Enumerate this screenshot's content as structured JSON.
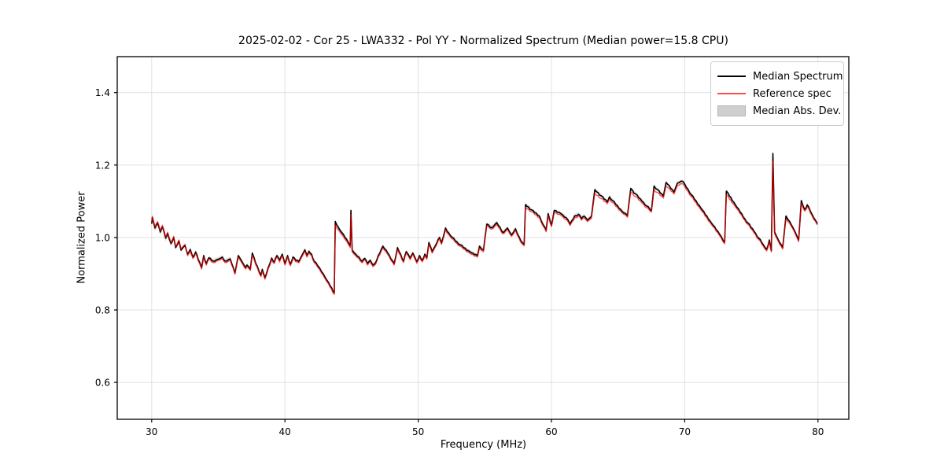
{
  "chart_data": {
    "type": "line",
    "title": "2025-02-02 - Cor 25 - LWA332 - Pol YY - Normalized Spectrum (Median power=15.8 CPU)",
    "xlabel": "Frequency (MHz)",
    "ylabel": "Normalized Power",
    "xlim": [
      27.5,
      82.3
    ],
    "ylim": [
      0.497,
      1.504
    ],
    "xticks": [
      30,
      40,
      50,
      60,
      70,
      80
    ],
    "yticks": [
      0.6,
      0.8,
      1.0,
      1.2,
      1.4
    ],
    "grid": true,
    "legend_position": "upper right",
    "series": [
      {
        "name": "Median Spectrum",
        "color": "#000000",
        "width": 1.6
      },
      {
        "name": "Reference spec",
        "color": "rgba(255,0,0,0.66)",
        "legend_color": "#ff4c4c",
        "width": 1.5
      }
    ],
    "band": {
      "name": "Median Abs. Dev.",
      "fill": "#b8b8b8",
      "opacity": 0.5,
      "halfwidth": 0.0055,
      "wide_regions": [
        {
          "from": 29.8,
          "to": 31.6,
          "hw": 0.009
        },
        {
          "from": 76.55,
          "to": 76.72,
          "hw": 0.013
        }
      ]
    },
    "style": {
      "jitter": 0.0022,
      "grid_color": "#e0e0e0",
      "frame_color": "#000000",
      "tick_font_px": 12,
      "bg": "#ffffff"
    },
    "points_format": [
      "freq_mhz",
      "median",
      "reference"
    ],
    "points": [
      [
        30.0,
        1.038,
        1.042
      ],
      [
        30.05,
        1.055,
        1.058
      ],
      [
        30.1,
        1.048,
        1.051
      ],
      [
        30.25,
        1.026,
        1.029
      ],
      [
        30.45,
        1.04,
        1.043
      ],
      [
        30.65,
        1.015,
        1.018
      ],
      [
        30.8,
        1.03,
        1.033
      ],
      [
        31.05,
        0.998,
        1.001
      ],
      [
        31.2,
        1.011,
        1.014
      ],
      [
        31.45,
        0.983,
        0.986
      ],
      [
        31.65,
        1.0,
        1.003
      ],
      [
        31.8,
        0.972,
        0.975
      ],
      [
        32.05,
        0.99,
        0.993
      ],
      [
        32.2,
        0.965,
        0.968
      ],
      [
        32.5,
        0.978,
        0.981
      ],
      [
        32.7,
        0.954,
        0.95
      ],
      [
        32.9,
        0.967,
        0.963
      ],
      [
        33.1,
        0.946,
        0.942
      ],
      [
        33.3,
        0.96,
        0.956
      ],
      [
        33.5,
        0.939,
        0.935
      ],
      [
        33.75,
        0.917,
        0.913
      ],
      [
        33.9,
        0.95,
        0.946
      ],
      [
        34.1,
        0.928,
        0.924
      ],
      [
        34.3,
        0.944,
        0.94
      ],
      [
        34.6,
        0.935,
        0.931
      ],
      [
        35.0,
        0.94,
        0.937
      ],
      [
        35.3,
        0.946,
        0.942
      ],
      [
        35.5,
        0.935,
        0.931
      ],
      [
        35.9,
        0.941,
        0.937
      ],
      [
        36.25,
        0.902,
        0.899
      ],
      [
        36.5,
        0.95,
        0.945
      ],
      [
        36.8,
        0.932,
        0.928
      ],
      [
        37.05,
        0.917,
        0.913
      ],
      [
        37.15,
        0.924,
        0.92
      ],
      [
        37.4,
        0.913,
        0.909
      ],
      [
        37.55,
        0.957,
        0.951
      ],
      [
        37.8,
        0.93,
        0.926
      ],
      [
        38.2,
        0.896,
        0.892
      ],
      [
        38.3,
        0.912,
        0.908
      ],
      [
        38.5,
        0.889,
        0.885
      ],
      [
        39.0,
        0.943,
        0.939
      ],
      [
        39.2,
        0.932,
        0.928
      ],
      [
        39.4,
        0.95,
        0.946
      ],
      [
        39.6,
        0.937,
        0.933
      ],
      [
        39.8,
        0.954,
        0.95
      ],
      [
        40.0,
        0.928,
        0.924
      ],
      [
        40.2,
        0.95,
        0.946
      ],
      [
        40.4,
        0.926,
        0.922
      ],
      [
        40.6,
        0.946,
        0.942
      ],
      [
        40.8,
        0.937,
        0.933
      ],
      [
        41.05,
        0.934,
        0.93
      ],
      [
        41.3,
        0.952,
        0.948
      ],
      [
        41.5,
        0.966,
        0.962
      ],
      [
        41.65,
        0.95,
        0.946
      ],
      [
        41.8,
        0.962,
        0.958
      ],
      [
        42.0,
        0.954,
        0.95
      ],
      [
        42.2,
        0.934,
        0.93
      ],
      [
        42.6,
        0.916,
        0.912
      ],
      [
        43.0,
        0.891,
        0.887
      ],
      [
        43.4,
        0.866,
        0.862
      ],
      [
        43.7,
        0.847,
        0.843
      ],
      [
        43.78,
        1.044,
        1.034
      ],
      [
        44.1,
        1.022,
        1.016
      ],
      [
        44.4,
        1.008,
        1.002
      ],
      [
        44.7,
        0.99,
        0.985
      ],
      [
        44.9,
        0.977,
        0.972
      ],
      [
        44.95,
        1.075,
        1.062
      ],
      [
        45.05,
        0.965,
        0.96
      ],
      [
        45.3,
        0.954,
        0.95
      ],
      [
        45.55,
        0.946,
        0.942
      ],
      [
        45.8,
        0.934,
        0.93
      ],
      [
        46.0,
        0.942,
        0.938
      ],
      [
        46.2,
        0.928,
        0.924
      ],
      [
        46.4,
        0.937,
        0.933
      ],
      [
        46.6,
        0.924,
        0.92
      ],
      [
        46.8,
        0.93,
        0.926
      ],
      [
        47.0,
        0.95,
        0.946
      ],
      [
        47.35,
        0.976,
        0.971
      ],
      [
        47.7,
        0.958,
        0.954
      ],
      [
        48.2,
        0.928,
        0.924
      ],
      [
        48.45,
        0.972,
        0.967
      ],
      [
        48.9,
        0.935,
        0.931
      ],
      [
        49.1,
        0.961,
        0.957
      ],
      [
        49.4,
        0.943,
        0.939
      ],
      [
        49.6,
        0.957,
        0.953
      ],
      [
        49.9,
        0.933,
        0.929
      ],
      [
        50.1,
        0.95,
        0.946
      ],
      [
        50.3,
        0.937,
        0.933
      ],
      [
        50.5,
        0.954,
        0.95
      ],
      [
        50.65,
        0.944,
        0.94
      ],
      [
        50.8,
        0.986,
        0.981
      ],
      [
        51.05,
        0.961,
        0.957
      ],
      [
        51.3,
        0.978,
        0.974
      ],
      [
        51.6,
        1.0,
        0.996
      ],
      [
        51.75,
        0.985,
        0.981
      ],
      [
        52.05,
        1.026,
        1.021
      ],
      [
        52.4,
        1.006,
        1.002
      ],
      [
        52.9,
        0.988,
        0.984
      ],
      [
        53.4,
        0.972,
        0.968
      ],
      [
        53.9,
        0.96,
        0.956
      ],
      [
        54.2,
        0.953,
        0.949
      ],
      [
        54.45,
        0.95,
        0.946
      ],
      [
        54.6,
        0.976,
        0.971
      ],
      [
        54.9,
        0.965,
        0.961
      ],
      [
        55.15,
        1.037,
        1.032
      ],
      [
        55.5,
        1.027,
        1.023
      ],
      [
        55.9,
        1.041,
        1.036
      ],
      [
        56.35,
        1.014,
        1.01
      ],
      [
        56.7,
        1.026,
        1.022
      ],
      [
        57.0,
        1.007,
        1.003
      ],
      [
        57.3,
        1.024,
        1.02
      ],
      [
        57.7,
        0.991,
        0.987
      ],
      [
        57.95,
        0.981,
        0.977
      ],
      [
        58.05,
        1.091,
        1.083
      ],
      [
        58.5,
        1.076,
        1.071
      ],
      [
        59.1,
        1.059,
        1.054
      ],
      [
        59.4,
        1.034,
        1.03
      ],
      [
        59.6,
        1.02,
        1.016
      ],
      [
        59.75,
        1.066,
        1.06
      ],
      [
        60.0,
        1.034,
        1.03
      ],
      [
        60.2,
        1.074,
        1.068
      ],
      [
        60.7,
        1.066,
        1.061
      ],
      [
        61.1,
        1.055,
        1.05
      ],
      [
        61.4,
        1.037,
        1.033
      ],
      [
        61.75,
        1.06,
        1.055
      ],
      [
        62.05,
        1.064,
        1.059
      ],
      [
        62.25,
        1.052,
        1.048
      ],
      [
        62.45,
        1.059,
        1.054
      ],
      [
        62.7,
        1.048,
        1.044
      ],
      [
        63.0,
        1.058,
        1.053
      ],
      [
        63.25,
        1.132,
        1.122
      ],
      [
        64.2,
        1.098,
        1.093
      ],
      [
        64.35,
        1.112,
        1.106
      ],
      [
        65.3,
        1.072,
        1.068
      ],
      [
        65.7,
        1.06,
        1.056
      ],
      [
        65.95,
        1.135,
        1.126
      ],
      [
        66.8,
        1.1,
        1.095
      ],
      [
        67.5,
        1.074,
        1.07
      ],
      [
        67.7,
        1.142,
        1.132
      ],
      [
        68.4,
        1.114,
        1.109
      ],
      [
        68.6,
        1.152,
        1.142
      ],
      [
        69.2,
        1.125,
        1.12
      ],
      [
        69.45,
        1.15,
        1.143
      ],
      [
        69.85,
        1.155,
        1.148
      ],
      [
        70.5,
        1.118,
        1.113
      ],
      [
        71.2,
        1.082,
        1.077
      ],
      [
        72.0,
        1.04,
        1.036
      ],
      [
        72.6,
        1.01,
        1.006
      ],
      [
        73.0,
        0.987,
        0.983
      ],
      [
        73.12,
        1.128,
        1.118
      ],
      [
        73.8,
        1.09,
        1.085
      ],
      [
        74.5,
        1.052,
        1.048
      ],
      [
        75.2,
        1.017,
        1.013
      ],
      [
        75.9,
        0.98,
        0.976
      ],
      [
        76.15,
        0.967,
        0.963
      ],
      [
        76.35,
        0.993,
        0.988
      ],
      [
        76.5,
        0.964,
        0.96
      ],
      [
        76.62,
        1.232,
        1.21
      ],
      [
        76.75,
        1.015,
        1.01
      ],
      [
        77.0,
        0.995,
        0.991
      ],
      [
        77.35,
        0.972,
        0.968
      ],
      [
        77.6,
        1.059,
        1.052
      ],
      [
        78.0,
        1.035,
        1.031
      ],
      [
        78.3,
        1.014,
        1.01
      ],
      [
        78.55,
        0.993,
        0.989
      ],
      [
        78.75,
        1.102,
        1.094
      ],
      [
        79.0,
        1.077,
        1.073
      ],
      [
        79.2,
        1.09,
        1.085
      ],
      [
        79.55,
        1.064,
        1.06
      ],
      [
        79.95,
        1.038,
        1.035
      ]
    ]
  },
  "legend": {
    "items": [
      {
        "label": "Median Spectrum"
      },
      {
        "label": "Reference spec"
      },
      {
        "label": "Median Abs. Dev."
      }
    ]
  }
}
